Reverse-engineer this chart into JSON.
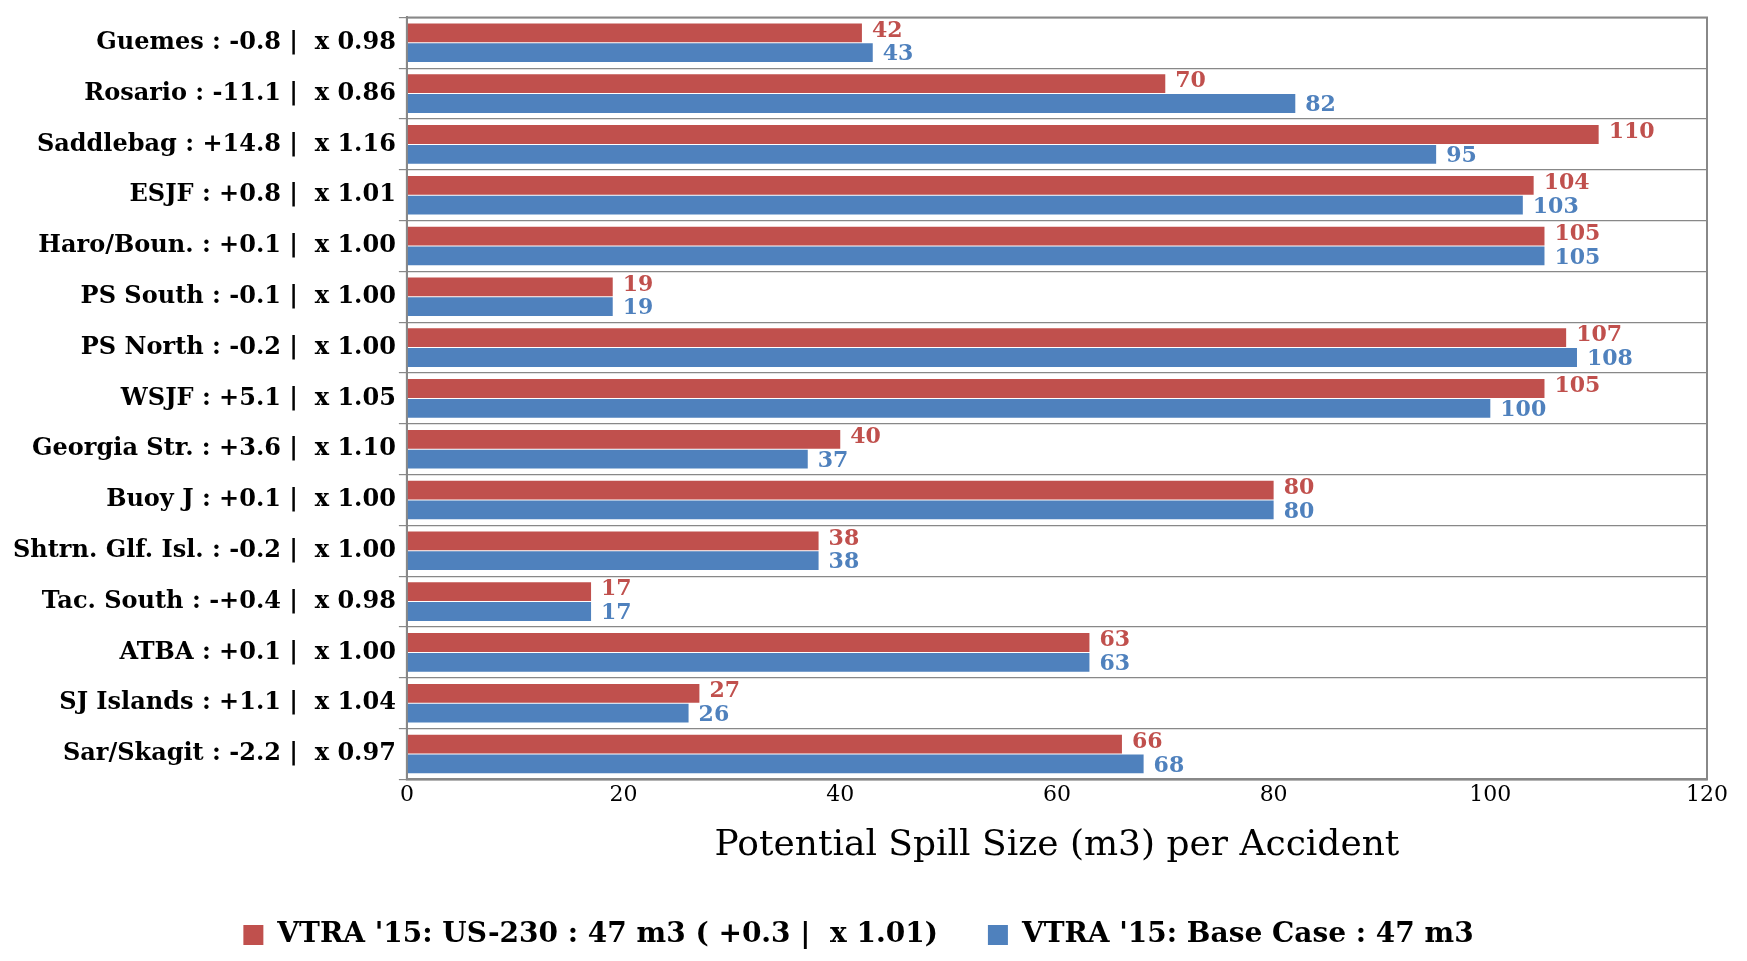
{
  "chart_data": {
    "type": "bar",
    "orientation": "horizontal",
    "categories": [
      "Guemes : -0.8 |  x 0.98",
      "Rosario : -11.1 |  x 0.86",
      "Saddlebag : +14.8 |  x 1.16",
      "ESJF : +0.8 |  x 1.01",
      "Haro/Boun. : +0.1 |  x 1.00",
      "PS South : -0.1 |  x 1.00",
      "PS North : -0.2 |  x 1.00",
      "WSJF : +5.1 |  x 1.05",
      "Georgia Str. : +3.6 |  x 1.10",
      "Buoy J : +0.1 |  x 1.00",
      "Shtrn. Glf. Isl. : -0.2 |  x 1.00",
      "Tac. South : -+0.4 |  x 0.98",
      "ATBA : +0.1 |  x 1.00",
      "SJ Islands : +1.1 |  x 1.04",
      "Sar/Skagit : -2.2 |  x 0.97"
    ],
    "series": [
      {
        "name": "VTRA '15: US-230 : 47 m3 ( +0.3 |  x 1.01)",
        "color": "#c0504d",
        "values": [
          42,
          70,
          110,
          104,
          105,
          19,
          107,
          105,
          40,
          80,
          38,
          17,
          63,
          27,
          66
        ]
      },
      {
        "name": "VTRA '15: Base Case : 47 m3",
        "color": "#4f81bd",
        "values": [
          43,
          82,
          95,
          103,
          105,
          19,
          108,
          100,
          37,
          80,
          38,
          17,
          63,
          26,
          68
        ]
      }
    ],
    "xlabel": "Potential Spill Size (m3) per Accident",
    "xlim": [
      0,
      120
    ],
    "xticks": [
      0,
      20,
      40,
      60,
      80,
      100,
      120
    ],
    "data_labels": true,
    "grid": "y",
    "legend": "bottom"
  }
}
